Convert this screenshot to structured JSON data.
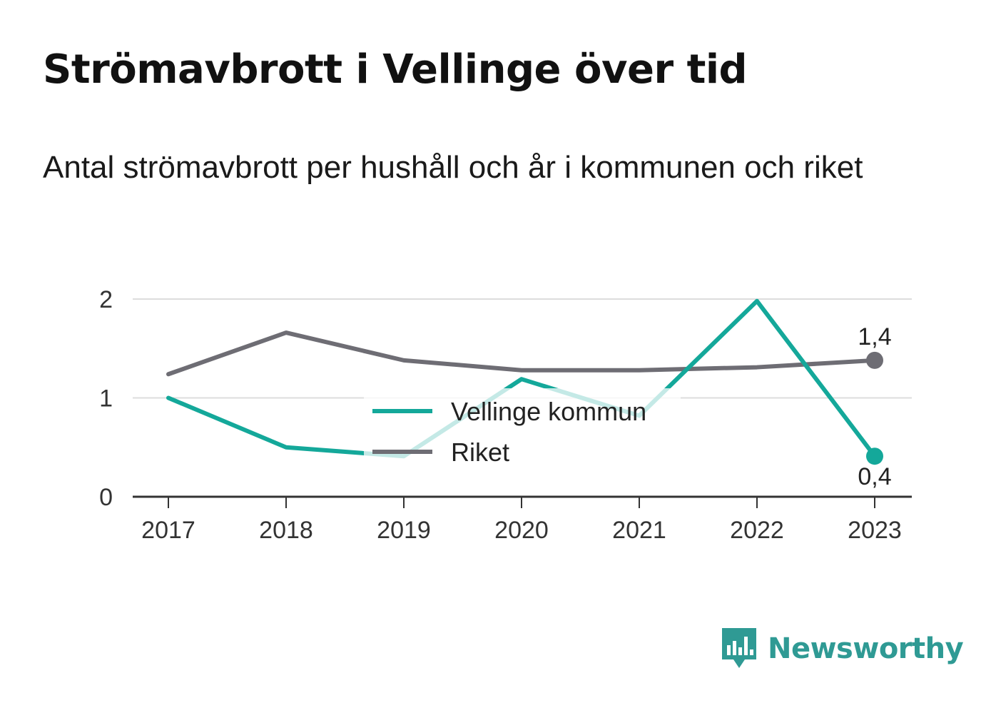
{
  "title": "Strömavbrott i Vellinge över tid",
  "subtitle": "Antal strömavbrott per hushåll och år i kommunen och riket",
  "brand": {
    "name": "Newsworthy",
    "icon": "bar-chart-speech-bubble-icon",
    "color": "#2f9a94"
  },
  "chart_data": {
    "type": "line",
    "x": [
      "2017",
      "2018",
      "2019",
      "2020",
      "2021",
      "2022",
      "2023"
    ],
    "ylim": [
      0,
      2
    ],
    "yticks": [
      "0",
      "1",
      "2"
    ],
    "grid": true,
    "legend_position": "center",
    "series": [
      {
        "name": "Vellinge kommun",
        "color": "#14a89a",
        "values": [
          1.0,
          0.5,
          0.41,
          1.19,
          0.82,
          1.98,
          0.41
        ],
        "end_label": "0,4"
      },
      {
        "name": "Riket",
        "color": "#6e6d74",
        "values": [
          1.24,
          1.66,
          1.38,
          1.28,
          1.28,
          1.31,
          1.38
        ],
        "end_label": "1,4"
      }
    ]
  }
}
